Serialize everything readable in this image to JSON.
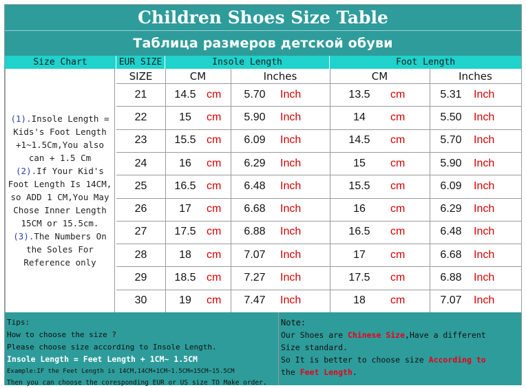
{
  "title": "Children Shoes Size Table",
  "subtitle": "Таблица размеров детской обуви",
  "headers": {
    "size_chart": "Size Chart",
    "eur_size": "EUR SIZE",
    "insole_length": "Insole Length",
    "foot_length": "Foot Length",
    "size": "SIZE",
    "cm": "CM",
    "inches": "Inches"
  },
  "left_note": {
    "p1_num": "(1).",
    "p1_text": "Insole Length = Kids's Foot Length +1~1.5Cm,You also can + 1.5 Cm",
    "p2_num": "(2).",
    "p2_text": "If Your Kid's Foot Length Is 14CM,  so ADD 1 CM,You May Chose Inner Length 15CM or 15.5cm.",
    "p3_num": "(3).",
    "p3_text": "The Numbers On the Soles For Reference only"
  },
  "units": {
    "cm": "cm",
    "inch": "Inch"
  },
  "rows": [
    {
      "size": "21",
      "insole_cm": "14.5",
      "insole_in": "5.70",
      "foot_cm": "13.5",
      "foot_in": "5.31"
    },
    {
      "size": "22",
      "insole_cm": "15",
      "insole_in": "5.90",
      "foot_cm": "14",
      "foot_in": "5.50"
    },
    {
      "size": "23",
      "insole_cm": "15.5",
      "insole_in": "6.09",
      "foot_cm": "14.5",
      "foot_in": "5.70"
    },
    {
      "size": "24",
      "insole_cm": "16",
      "insole_in": "6.29",
      "foot_cm": "15",
      "foot_in": "5.90"
    },
    {
      "size": "25",
      "insole_cm": "16.5",
      "insole_in": "6.48",
      "foot_cm": "15.5",
      "foot_in": "6.09"
    },
    {
      "size": "26",
      "insole_cm": "17",
      "insole_in": "6.68",
      "foot_cm": "16",
      "foot_in": "6.29"
    },
    {
      "size": "27",
      "insole_cm": "17.5",
      "insole_in": "6.88",
      "foot_cm": "16.5",
      "foot_in": "6.48"
    },
    {
      "size": "28",
      "insole_cm": "18",
      "insole_in": "7.07",
      "foot_cm": "17",
      "foot_in": "6.68"
    },
    {
      "size": "29",
      "insole_cm": "18.5",
      "insole_in": "7.27",
      "foot_cm": "17.5",
      "foot_in": "6.88"
    },
    {
      "size": "30",
      "insole_cm": "19",
      "insole_in": "7.47",
      "foot_cm": "18",
      "foot_in": "7.07"
    }
  ],
  "tips": {
    "label": "Tips:",
    "line1": "How to choose the size ?",
    "line2": "Please choose size according to Insole Length.",
    "line3": "Insole Length = Feet Length + 1CM~ 1.5CM",
    "line4": "Example:IF the Feet Length is 14CM,14CM+1CM~1.5CM=15CM~15.5CM",
    "line5": "Then you can choose the coresponding EUR or US size TO Make order."
  },
  "note": {
    "label": "Note:",
    "l1a": "Our Shoes are ",
    "l1b": "Chinese Size",
    "l1c": ",Have a different",
    "l2": "Size standard.",
    "l3a": "So It is better to choose size ",
    "l3b": "According to",
    "l4a": "the ",
    "l4b": "Feet Length",
    "l4c": "."
  },
  "colors": {
    "band": "#2e9c9a",
    "header": "#1fd2cc",
    "unit": "#d20000",
    "emphasis": "#e8001a"
  }
}
